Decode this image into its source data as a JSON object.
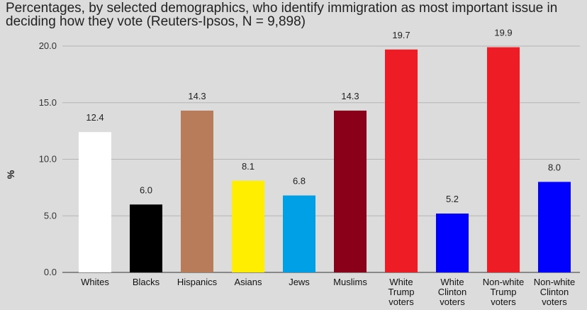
{
  "chart_data": {
    "type": "bar",
    "title": "Percentages, by selected demographics, who identify immigration as most important issue in deciding how they vote (Reuters-Ipsos, N = 9,898)",
    "ylabel": "%",
    "xlabel": "",
    "ylim": [
      0,
      20
    ],
    "yticks": [
      "0.0",
      "5.0",
      "10.0",
      "15.0",
      "20.0"
    ],
    "grid": true,
    "categories": [
      "Whites",
      "Blacks",
      "Hispanics",
      "Asians",
      "Jews",
      "Muslims",
      "White Trump voters",
      "White Clinton voters",
      "Non-white Trump voters",
      "Non-white Clinton voters"
    ],
    "values": [
      12.4,
      6.0,
      14.3,
      8.1,
      6.8,
      14.3,
      19.7,
      5.2,
      19.9,
      8.0
    ],
    "value_labels": [
      "12.4",
      "6.0",
      "14.3",
      "8.1",
      "6.8",
      "14.3",
      "19.7",
      "5.2",
      "19.9",
      "8.0"
    ],
    "colors": [
      "#ffffff",
      "#000000",
      "#b97c5a",
      "#ffee00",
      "#00a0e6",
      "#8b0019",
      "#ee1c25",
      "#0000ff",
      "#ee1c25",
      "#0000ff"
    ]
  }
}
